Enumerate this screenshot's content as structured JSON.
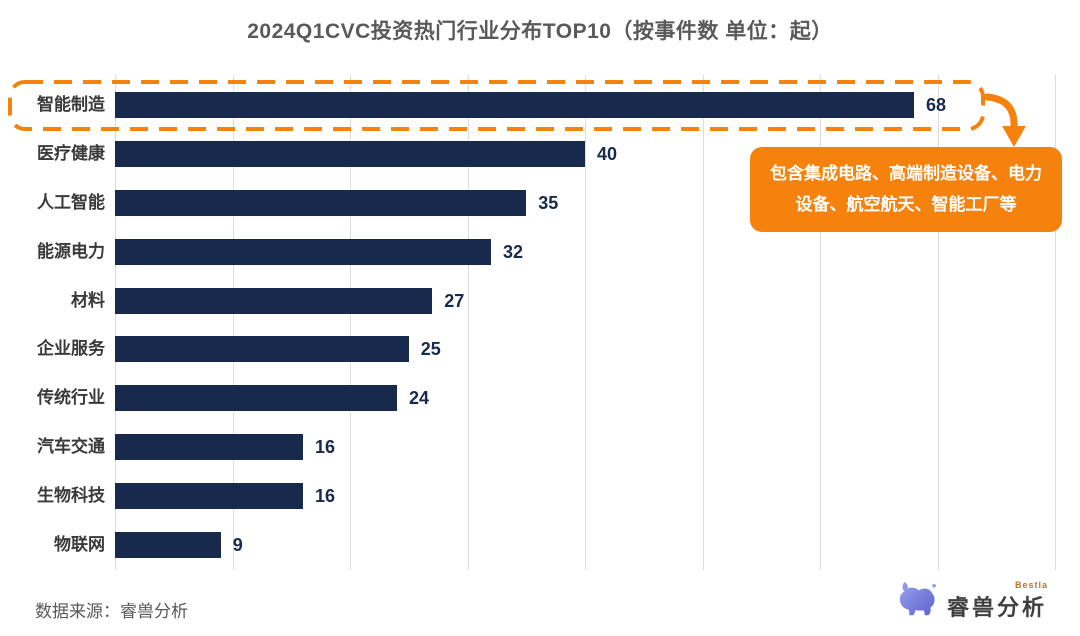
{
  "title": "2024Q1CVC投资热门行业分布TOP10（按事件数 单位：起）",
  "chart_data": {
    "type": "bar",
    "orientation": "horizontal",
    "categories": [
      "智能制造",
      "医疗健康",
      "人工智能",
      "能源电力",
      "材料",
      "企业服务",
      "传统行业",
      "汽车交通",
      "生物科技",
      "物联网"
    ],
    "values": [
      68,
      40,
      35,
      32,
      27,
      25,
      24,
      16,
      16,
      9
    ],
    "xlim": [
      0,
      80
    ],
    "gridline_interval": 10,
    "grid": true,
    "xlabel": "",
    "ylabel": "",
    "bar_color": "#17294d",
    "value_label_color": "#17294d",
    "grid_color": "#dcdcdc"
  },
  "annotation": {
    "highlight_category": "智能制造",
    "highlight_value": 68,
    "callout_text": "包含集成电路、高端制造设备、电力设备、航空航天、智能工厂等",
    "accent_color": "#f5820c",
    "arrow_icon": "curved-down-arrow"
  },
  "footer": {
    "source_label": "数据来源：睿兽分析",
    "logo_text": "睿兽分析",
    "logo_sub_text": "Bestla",
    "logo_icon": "bestla-beast-icon",
    "logo_icon_color": "#6f74d2"
  }
}
